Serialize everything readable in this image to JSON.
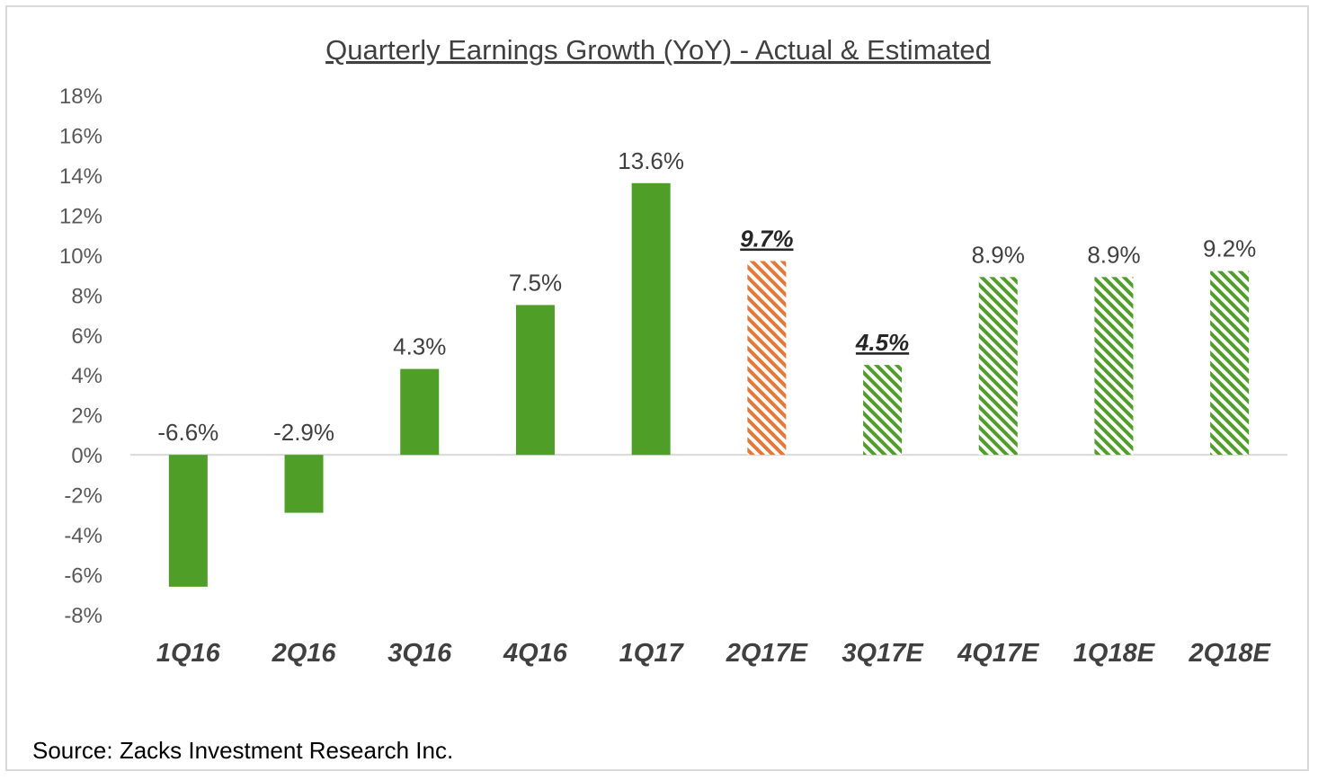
{
  "chart_data": {
    "type": "bar",
    "title": "Quarterly Earnings Growth (YoY) - Actual & Estimated",
    "categories": [
      "1Q16",
      "2Q16",
      "3Q16",
      "4Q16",
      "1Q17",
      "2Q17E",
      "3Q17E",
      "4Q17E",
      "1Q18E",
      "2Q18E"
    ],
    "values": [
      -6.6,
      -2.9,
      4.3,
      7.5,
      13.6,
      9.7,
      4.5,
      8.9,
      8.9,
      9.2
    ],
    "data_labels": [
      "-6.6%",
      "-2.9%",
      "4.3%",
      "7.5%",
      "13.6%",
      "9.7%",
      "4.5%",
      "8.9%",
      "8.9%",
      "9.2%"
    ],
    "bar_styles": [
      "solid",
      "solid",
      "solid",
      "solid",
      "solid",
      "hatched-orange",
      "hatched-green",
      "hatched-green",
      "hatched-green",
      "hatched-green"
    ],
    "emphasized_labels": [
      false,
      false,
      false,
      false,
      false,
      true,
      true,
      false,
      false,
      false
    ],
    "ylim": [
      -8,
      18
    ],
    "yticks": [
      18,
      16,
      14,
      12,
      10,
      8,
      6,
      4,
      2,
      0,
      -2,
      -4,
      -6,
      -8
    ],
    "ytick_labels": [
      "18%",
      "16%",
      "14%",
      "12%",
      "10%",
      "8%",
      "6%",
      "4%",
      "2%",
      "0%",
      "-2%",
      "-4%",
      "-6%",
      "-8%"
    ],
    "xlabel": "",
    "ylabel": "",
    "grid": false,
    "legend": "none",
    "colors": {
      "solid_green": "#4f9e27",
      "hatch_green": "#4f9e27",
      "hatch_orange": "#ea7633",
      "axis": "#d9d9d9"
    },
    "source_note": "Source: Zacks Investment Research Inc."
  }
}
